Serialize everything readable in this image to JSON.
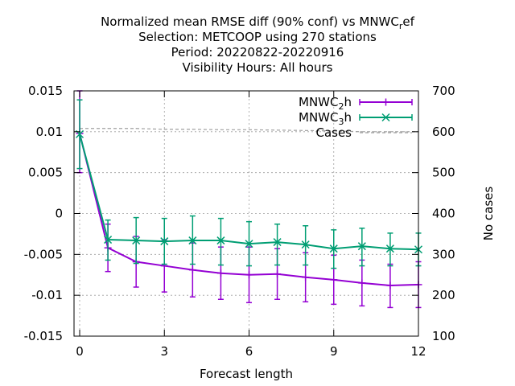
{
  "chart_data": {
    "type": "line",
    "title_lines": [
      "Normalized mean RMSE diff (90% conf) vs MNWC",
      "Selection: METCOOP using   270 stations",
      "Period: 20220822-20220916",
      "Visibility   Hours:  All hours"
    ],
    "title_suffix": {
      "sub": "r",
      "rest": "ef"
    },
    "xlabel": "Forecast length",
    "ylabel_right": "No cases",
    "xlim": [
      -0.2,
      12
    ],
    "ylim": [
      -0.015,
      0.015
    ],
    "y2lim": [
      100,
      700
    ],
    "x_ticks": [
      0,
      3,
      6,
      9,
      12
    ],
    "x_tick_labels": [
      "0",
      "3",
      "6",
      "9",
      "12"
    ],
    "y_ticks": [
      -0.015,
      -0.01,
      -0.005,
      0,
      0.005,
      0.01,
      0.015
    ],
    "y_tick_labels": [
      "-0.015",
      "-0.01",
      "-0.005",
      "0",
      "0.005",
      "0.01",
      "0.015"
    ],
    "y2_ticks": [
      100,
      200,
      300,
      400,
      500,
      600,
      700
    ],
    "y2_tick_labels": [
      "100",
      "200",
      "300",
      "400",
      "500",
      "600",
      "700"
    ],
    "grid": true,
    "legend_position": "top-right",
    "x": [
      0,
      1,
      2,
      3,
      4,
      5,
      6,
      7,
      8,
      9,
      10,
      11,
      12
    ],
    "series": [
      {
        "name": "MNWC",
        "name_sub": "2",
        "name_rest": "h",
        "color": "#9400d3",
        "marker": "plus",
        "values": [
          0.0098,
          -0.0042,
          -0.0059,
          -0.0064,
          -0.0069,
          -0.0073,
          -0.0075,
          -0.0074,
          -0.0078,
          -0.0081,
          -0.0085,
          -0.0088,
          -0.0087
        ],
        "lower": [
          0.005,
          -0.0071,
          -0.009,
          -0.0096,
          -0.0102,
          -0.0105,
          -0.0109,
          -0.0105,
          -0.0108,
          -0.0111,
          -0.0113,
          -0.0115,
          -0.0115
        ],
        "upper": [
          0.015,
          -0.0013,
          -0.0028,
          -0.0032,
          -0.0036,
          -0.0041,
          -0.0041,
          -0.0043,
          -0.0048,
          -0.0051,
          -0.0057,
          -0.0062,
          -0.0059
        ]
      },
      {
        "name": "MNWC",
        "name_sub": "3",
        "name_rest": "h",
        "color": "#009e73",
        "marker": "cross",
        "values": [
          0.0097,
          -0.0032,
          -0.0033,
          -0.0034,
          -0.0033,
          -0.0033,
          -0.0037,
          -0.0035,
          -0.0038,
          -0.0043,
          -0.004,
          -0.0043,
          -0.0044
        ],
        "lower": [
          0.0055,
          -0.0057,
          -0.0061,
          -0.0062,
          -0.0062,
          -0.0063,
          -0.0064,
          -0.0063,
          -0.0063,
          -0.0067,
          -0.0064,
          -0.0064,
          -0.0064
        ],
        "upper": [
          0.0139,
          -0.0008,
          -0.0005,
          -0.0006,
          -0.0003,
          -0.0006,
          -0.001,
          -0.0013,
          -0.0015,
          -0.002,
          -0.0018,
          -0.0024,
          -0.0024
        ]
      }
    ],
    "cases": {
      "name": "Cases",
      "color": "#a0a0a0",
      "values": [
        608,
        608,
        608,
        606,
        606,
        605,
        605,
        604,
        603,
        602,
        600,
        600,
        600
      ]
    }
  }
}
